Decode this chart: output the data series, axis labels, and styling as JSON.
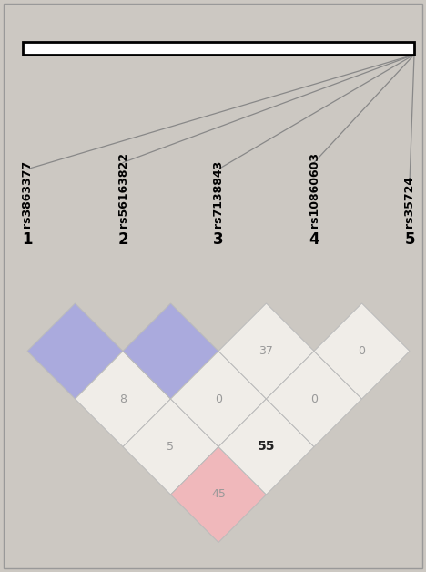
{
  "snp_labels": [
    "rs3863377",
    "rs56163822",
    "rs7138843",
    "rs10860603",
    "rs35724"
  ],
  "numbers": [
    "1",
    "2",
    "3",
    "4",
    "5"
  ],
  "background_color": "#ccc8c2",
  "cell_data": [
    {
      "row": 0,
      "col": 1,
      "value": null,
      "color": "#aaaadd",
      "bold": false
    },
    {
      "row": 0,
      "col": 2,
      "value": 8,
      "color": "#f0ede8",
      "bold": false
    },
    {
      "row": 0,
      "col": 3,
      "value": 5,
      "color": "#f0ede8",
      "bold": false
    },
    {
      "row": 0,
      "col": 4,
      "value": 45,
      "color": "#f0b8bb",
      "bold": false
    },
    {
      "row": 1,
      "col": 2,
      "value": null,
      "color": "#aaaadd",
      "bold": false
    },
    {
      "row": 1,
      "col": 3,
      "value": 0,
      "color": "#f0ede8",
      "bold": false
    },
    {
      "row": 1,
      "col": 4,
      "value": 55,
      "color": "#f0ede8",
      "bold": true
    },
    {
      "row": 2,
      "col": 3,
      "value": 37,
      "color": "#f0ede8",
      "bold": false
    },
    {
      "row": 2,
      "col": 4,
      "value": 0,
      "color": "#f0ede8",
      "bold": false
    },
    {
      "row": 3,
      "col": 4,
      "value": 0,
      "color": "#f0ede8",
      "bold": false
    }
  ],
  "text_color_normal": "#999999",
  "text_color_bold": "#222222",
  "border_color": "#bbbbbb",
  "fig_width": 4.68,
  "fig_height": 6.28
}
